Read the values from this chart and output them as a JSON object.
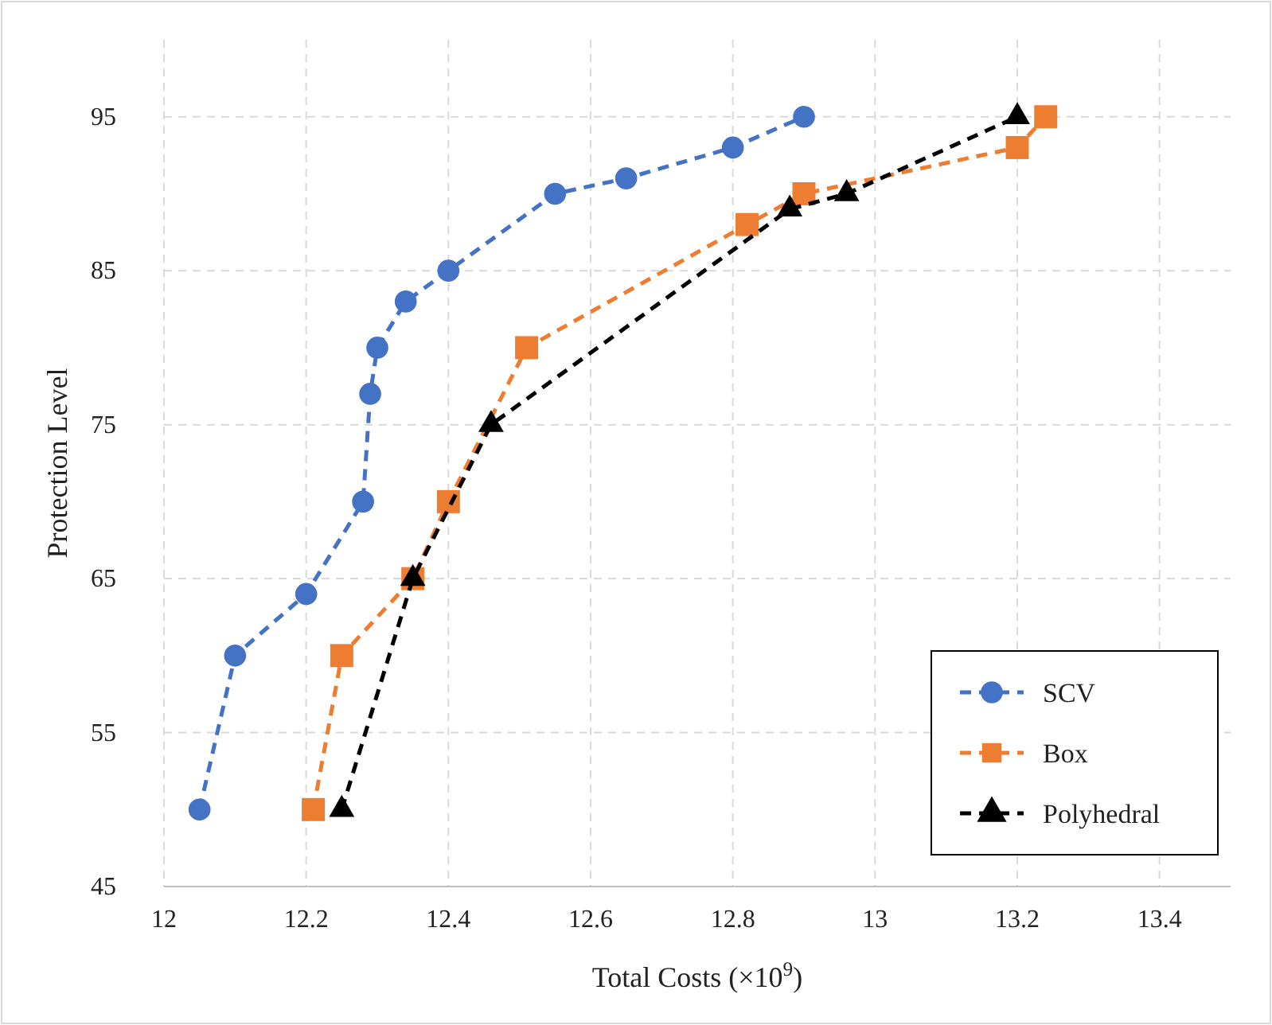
{
  "chart_data": {
    "type": "line",
    "xlabel": "Total Costs (×10$^{9}$)",
    "ylabel": "Protection Level",
    "xlim": [
      12,
      13.5
    ],
    "xticks": [
      12,
      12.2,
      12.4,
      12.6,
      12.8,
      13,
      13.2,
      13.4
    ],
    "ylim": [
      45,
      100
    ],
    "yticks": [
      45,
      55,
      65,
      75,
      85,
      95
    ],
    "grid": true,
    "legend": "bottom right",
    "line_style": "dashed",
    "series": [
      {
        "name": "SCV",
        "color": "#4472c4",
        "marker": "circle",
        "x": [
          12.05,
          12.1,
          12.2,
          12.28,
          12.29,
          12.3,
          12.34,
          12.4,
          12.55,
          12.65,
          12.8,
          12.9
        ],
        "values": [
          50,
          60,
          64,
          70,
          77,
          80,
          83,
          85,
          90,
          91,
          93,
          95
        ]
      },
      {
        "name": "Box",
        "color": "#ed7d31",
        "marker": "square",
        "x": [
          12.21,
          12.25,
          12.35,
          12.4,
          12.51,
          12.82,
          12.9,
          13.2,
          13.24
        ],
        "values": [
          50,
          60,
          65,
          70,
          80,
          88,
          90,
          93,
          95
        ]
      },
      {
        "name": "Polyhedral",
        "color": "#000000",
        "marker": "triangle",
        "x": [
          12.25,
          12.35,
          12.46,
          12.88,
          12.96,
          13.2
        ],
        "values": [
          50,
          65,
          75,
          89,
          90,
          95
        ]
      }
    ]
  }
}
